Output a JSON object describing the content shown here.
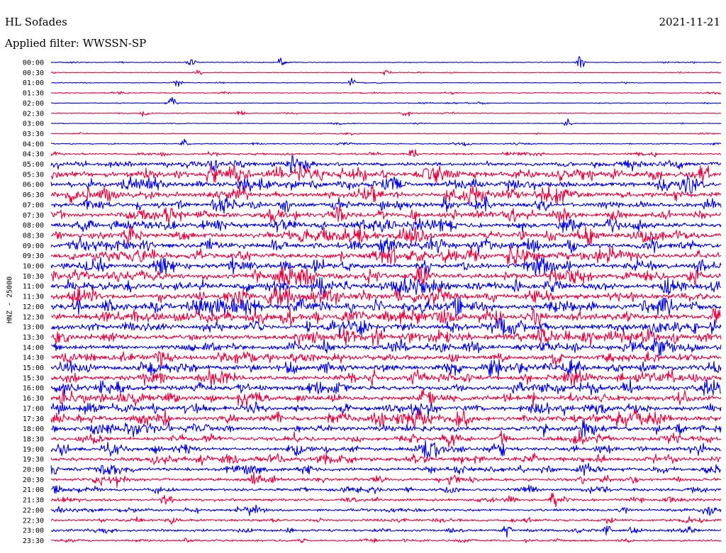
{
  "header": {
    "station": "HL Sofades",
    "date": "2021-11-21",
    "filter_label": "Applied filter: WWSSN-SP"
  },
  "chart_data": {
    "type": "line",
    "ylabel": "HNZ - 25000",
    "row_labels": [
      "00:00",
      "00:30",
      "01:00",
      "01:30",
      "02:00",
      "02:30",
      "03:00",
      "03:30",
      "04:00",
      "04:30",
      "05:00",
      "05:30",
      "06:00",
      "06:30",
      "07:00",
      "07:30",
      "08:00",
      "08:30",
      "09:00",
      "09:30",
      "10:00",
      "10:30",
      "11:00",
      "11:30",
      "12:00",
      "12:30",
      "13:00",
      "13:30",
      "14:00",
      "14:30",
      "15:00",
      "15:30",
      "16:00",
      "16:30",
      "17:00",
      "17:30",
      "18:00",
      "18:30",
      "19:00",
      "19:30",
      "20:00",
      "20:30",
      "21:00",
      "21:30",
      "22:00",
      "22:30",
      "23:00",
      "23:30"
    ],
    "series_colors": [
      "#0000e6",
      "#e8003c"
    ],
    "activity_level": [
      0.6,
      0.5,
      0.5,
      0.7,
      0.6,
      0.6,
      0.5,
      0.6,
      0.8,
      1.2,
      2.4,
      3.4,
      3.1,
      3.2,
      3.0,
      2.9,
      3.1,
      3.2,
      3.3,
      3.4,
      3.2,
      3.3,
      3.4,
      3.5,
      3.6,
      3.5,
      3.3,
      3.4,
      3.1,
      3.0,
      3.2,
      3.1,
      3.0,
      3.1,
      3.0,
      3.1,
      2.9,
      2.6,
      2.5,
      2.6,
      2.4,
      2.0,
      1.9,
      1.8,
      1.7,
      1.6,
      1.6,
      1.3
    ],
    "events": [
      {
        "row": 0,
        "x_fraction": 0.21,
        "amplitude": 9
      },
      {
        "row": 0,
        "x_fraction": 0.345,
        "amplitude": 9
      },
      {
        "row": 0,
        "x_fraction": 0.79,
        "amplitude": 9
      },
      {
        "row": 1,
        "x_fraction": 0.22,
        "amplitude": 5
      },
      {
        "row": 1,
        "x_fraction": 0.5,
        "amplitude": 5
      },
      {
        "row": 2,
        "x_fraction": 0.19,
        "amplitude": 6
      },
      {
        "row": 2,
        "x_fraction": 0.45,
        "amplitude": 6
      },
      {
        "row": 4,
        "x_fraction": 0.18,
        "amplitude": 10
      },
      {
        "row": 5,
        "x_fraction": 0.14,
        "amplitude": 6
      },
      {
        "row": 5,
        "x_fraction": 0.53,
        "amplitude": 5
      },
      {
        "row": 6,
        "x_fraction": 0.77,
        "amplitude": 6
      },
      {
        "row": 8,
        "x_fraction": 0.2,
        "amplitude": 6
      },
      {
        "row": 9,
        "x_fraction": 0.54,
        "amplitude": 7
      },
      {
        "row": 11,
        "x_fraction": 0.58,
        "amplitude": 9
      },
      {
        "row": 13,
        "x_fraction": 0.48,
        "amplitude": 12
      },
      {
        "row": 14,
        "x_fraction": 0.35,
        "amplitude": 9
      },
      {
        "row": 15,
        "x_fraction": 0.54,
        "amplitude": 10
      },
      {
        "row": 20,
        "x_fraction": 0.56,
        "amplitude": 9
      },
      {
        "row": 22,
        "x_fraction": 0.92,
        "amplitude": 10
      },
      {
        "row": 23,
        "x_fraction": 0.28,
        "amplitude": 9
      },
      {
        "row": 24,
        "x_fraction": 0.04,
        "amplitude": 10
      },
      {
        "row": 24,
        "x_fraction": 0.27,
        "amplitude": 9
      },
      {
        "row": 27,
        "x_fraction": 0.8,
        "amplitude": 9
      },
      {
        "row": 31,
        "x_fraction": 0.24,
        "amplitude": 10
      },
      {
        "row": 31,
        "x_fraction": 0.48,
        "amplitude": 10
      },
      {
        "row": 35,
        "x_fraction": 0.17,
        "amplitude": 14
      },
      {
        "row": 38,
        "x_fraction": 0.16,
        "amplitude": 10
      },
      {
        "row": 38,
        "x_fraction": 0.97,
        "amplitude": 10
      },
      {
        "row": 40,
        "x_fraction": 0.0,
        "amplitude": 10
      },
      {
        "row": 41,
        "x_fraction": 0.6,
        "amplitude": 7
      },
      {
        "row": 43,
        "x_fraction": 0.17,
        "amplitude": 9
      },
      {
        "row": 43,
        "x_fraction": 0.75,
        "amplitude": 8
      },
      {
        "row": 44,
        "x_fraction": 0.01,
        "amplitude": 6
      },
      {
        "row": 44,
        "x_fraction": 0.3,
        "amplitude": 7
      },
      {
        "row": 45,
        "x_fraction": 0.18,
        "amplitude": 8
      },
      {
        "row": 45,
        "x_fraction": 0.95,
        "amplitude": 9
      },
      {
        "row": 46,
        "x_fraction": 0.68,
        "amplitude": 10
      },
      {
        "row": 46,
        "x_fraction": 0.83,
        "amplitude": 10
      }
    ]
  }
}
